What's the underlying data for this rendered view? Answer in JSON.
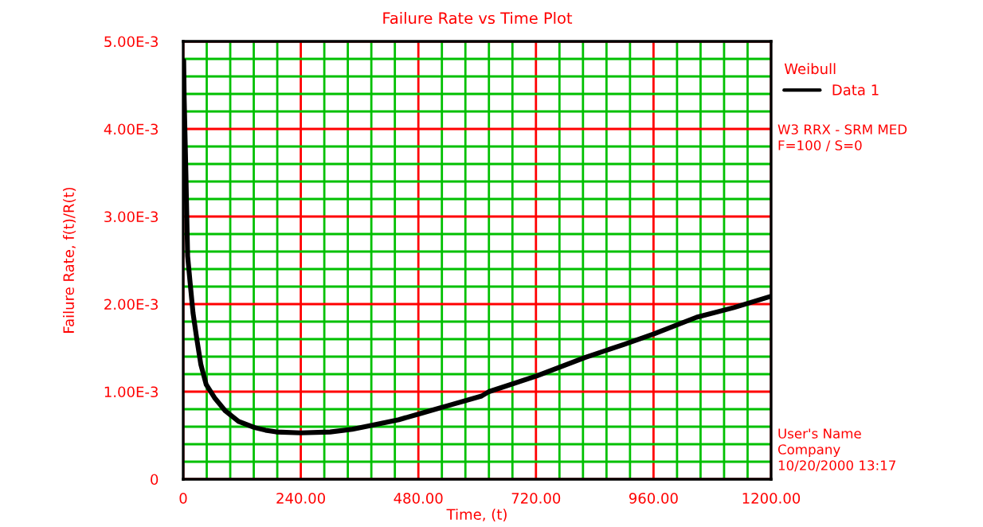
{
  "chart_data": {
    "type": "line",
    "title": "Failure Rate vs Time Plot",
    "xlabel": "Time, (t)",
    "ylabel": "Failure Rate, f(t)/R(t)",
    "legend_title": "Weibull",
    "legend": "top right",
    "grid": true,
    "line_style": "solid",
    "marker": "none",
    "xlim": [
      0,
      1200
    ],
    "ylim": [
      0,
      0.005
    ],
    "xticks": [
      {
        "value": 0,
        "label": "0"
      },
      {
        "value": 48,
        "label": null
      },
      {
        "value": 96,
        "label": null
      },
      {
        "value": 144,
        "label": null
      },
      {
        "value": 192,
        "label": null
      },
      {
        "value": 240,
        "label": "240.00"
      },
      {
        "value": 288,
        "label": null
      },
      {
        "value": 336,
        "label": null
      },
      {
        "value": 384,
        "label": null
      },
      {
        "value": 432,
        "label": null
      },
      {
        "value": 480,
        "label": "480.00"
      },
      {
        "value": 528,
        "label": null
      },
      {
        "value": 576,
        "label": null
      },
      {
        "value": 624,
        "label": null
      },
      {
        "value": 672,
        "label": null
      },
      {
        "value": 720,
        "label": "720.00"
      },
      {
        "value": 768,
        "label": null
      },
      {
        "value": 816,
        "label": null
      },
      {
        "value": 864,
        "label": null
      },
      {
        "value": 912,
        "label": null
      },
      {
        "value": 960,
        "label": "960.00"
      },
      {
        "value": 1008,
        "label": null
      },
      {
        "value": 1056,
        "label": null
      },
      {
        "value": 1104,
        "label": null
      },
      {
        "value": 1152,
        "label": null
      },
      {
        "value": 1200,
        "label": "1200.00"
      }
    ],
    "yticks": [
      {
        "value": 0,
        "label": "0"
      },
      {
        "value": 0.0002,
        "label": null
      },
      {
        "value": 0.0004,
        "label": null
      },
      {
        "value": 0.0006,
        "label": null
      },
      {
        "value": 0.0008,
        "label": null
      },
      {
        "value": 0.001,
        "label": "1.00E-3"
      },
      {
        "value": 0.0012,
        "label": null
      },
      {
        "value": 0.0014,
        "label": null
      },
      {
        "value": 0.0016,
        "label": null
      },
      {
        "value": 0.0018,
        "label": null
      },
      {
        "value": 0.002,
        "label": "2.00E-3"
      },
      {
        "value": 0.0022,
        "label": null
      },
      {
        "value": 0.0024,
        "label": null
      },
      {
        "value": 0.0026,
        "label": null
      },
      {
        "value": 0.0028,
        "label": null
      },
      {
        "value": 0.003,
        "label": "3.00E-3"
      },
      {
        "value": 0.0032,
        "label": null
      },
      {
        "value": 0.0034,
        "label": null
      },
      {
        "value": 0.0036,
        "label": null
      },
      {
        "value": 0.0038,
        "label": null
      },
      {
        "value": 0.004,
        "label": "4.00E-3"
      },
      {
        "value": 0.0042,
        "label": null
      },
      {
        "value": 0.0044,
        "label": null
      },
      {
        "value": 0.0046,
        "label": null
      },
      {
        "value": 0.0048,
        "label": null
      },
      {
        "value": 0.005,
        "label": "5.00E-3"
      }
    ],
    "series": [
      {
        "name": "Data 1",
        "color": "#000000",
        "x": [
          1,
          2,
          5.5,
          9,
          14,
          20,
          27.5,
          36,
          47,
          64,
          86,
          113,
          146,
          168,
          190,
          240,
          300,
          345,
          389,
          440,
          484,
          540,
          609,
          624,
          722,
          820,
          900,
          961,
          1048,
          1124,
          1200
        ],
        "values": [
          0.00478,
          0.00434,
          0.00349,
          0.00255,
          0.00225,
          0.0019,
          0.00161,
          0.00131,
          0.00108,
          0.00093,
          0.00078,
          0.00066,
          0.00059,
          0.00056,
          0.00054,
          0.00053,
          0.00054,
          0.00057,
          0.00062,
          0.00068,
          0.00075,
          0.00084,
          0.00095,
          0.001,
          0.00118,
          0.00139,
          0.00154,
          0.00166,
          0.00185,
          0.00196,
          0.00209
        ]
      }
    ],
    "annotations": [
      "W3 RRX - SRM MED",
      "F=100 / S=0",
      "User's Name",
      "Company",
      "10/20/2000 13:17"
    ]
  }
}
